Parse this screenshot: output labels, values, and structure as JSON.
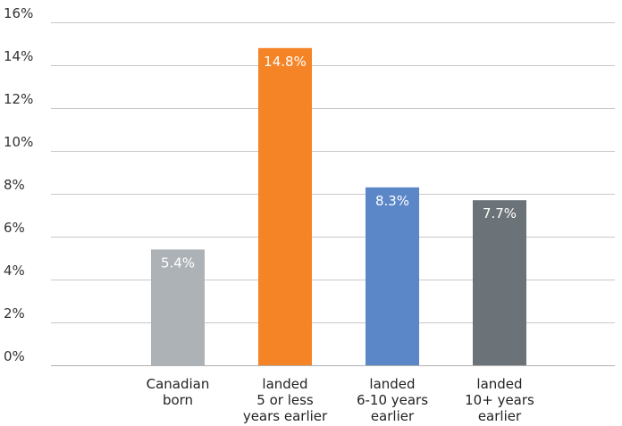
{
  "chart_data": {
    "type": "bar",
    "title": "",
    "xlabel": "",
    "ylabel": "",
    "ylim": [
      0,
      16
    ],
    "y_ticks": [
      0,
      2,
      4,
      6,
      8,
      10,
      12,
      14,
      16
    ],
    "y_tick_labels": [
      "0%",
      "2%",
      "4%",
      "6%",
      "8%",
      "10%",
      "12%",
      "14%",
      "16%"
    ],
    "grid": true,
    "legend": "none",
    "categories": [
      [
        "Canadian",
        "born"
      ],
      [
        "landed",
        "5 or less",
        "years earlier"
      ],
      [
        "landed",
        "6-10 years",
        "earlier"
      ],
      [
        "landed",
        "10+ years",
        "earlier"
      ]
    ],
    "values": [
      5.4,
      14.8,
      8.3,
      7.7
    ],
    "data_labels": [
      "5.4%",
      "14.8%",
      "8.3%",
      "7.7%"
    ],
    "colors": [
      "#adb2b7",
      "#f58427",
      "#5b87c8",
      "#6b7378"
    ]
  }
}
